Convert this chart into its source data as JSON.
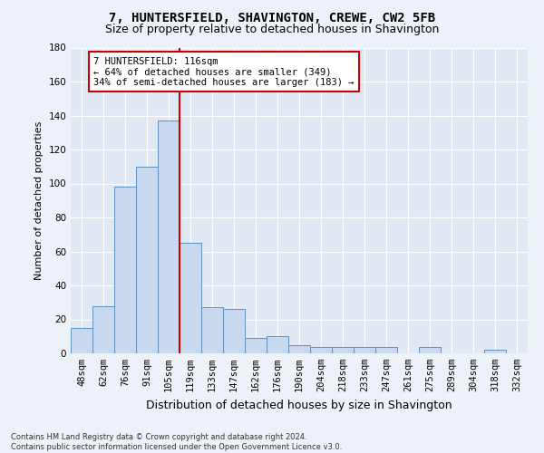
{
  "title_line1": "7, HUNTERSFIELD, SHAVINGTON, CREWE, CW2 5FB",
  "title_line2": "Size of property relative to detached houses in Shavington",
  "xlabel": "Distribution of detached houses by size in Shavington",
  "ylabel": "Number of detached properties",
  "bar_labels": [
    "48sqm",
    "62sqm",
    "76sqm",
    "91sqm",
    "105sqm",
    "119sqm",
    "133sqm",
    "147sqm",
    "162sqm",
    "176sqm",
    "190sqm",
    "204sqm",
    "218sqm",
    "233sqm",
    "247sqm",
    "261sqm",
    "275sqm",
    "289sqm",
    "304sqm",
    "318sqm",
    "332sqm"
  ],
  "bar_values": [
    15,
    28,
    98,
    110,
    137,
    65,
    27,
    26,
    9,
    10,
    5,
    4,
    4,
    4,
    4,
    0,
    4,
    0,
    0,
    2,
    0
  ],
  "bar_color": "#c8d8ee",
  "bar_edge_color": "#6090c0",
  "ylim": [
    0,
    180
  ],
  "yticks": [
    0,
    20,
    40,
    60,
    80,
    100,
    120,
    140,
    160,
    180
  ],
  "vline_x": 4.5,
  "vline_color": "#cc0000",
  "annotation_text_line1": "7 HUNTERSFIELD: 116sqm",
  "annotation_text_line2": "← 64% of detached houses are smaller (349)",
  "annotation_text_line3": "34% of semi-detached houses are larger (183) →",
  "annotation_box_color": "#ffffff",
  "annotation_box_edge": "#cc0000",
  "footer_line1": "Contains HM Land Registry data © Crown copyright and database right 2024.",
  "footer_line2": "Contains public sector information licensed under the Open Government Licence v3.0.",
  "bg_color": "#edf2f9",
  "plot_bg_color": "#e0e8f4",
  "grid_color": "#ffffff",
  "title1_fontsize": 10,
  "title2_fontsize": 9,
  "ylabel_fontsize": 8,
  "xlabel_fontsize": 9,
  "tick_fontsize": 7.5,
  "ann_fontsize": 7.5,
  "footer_fontsize": 6
}
